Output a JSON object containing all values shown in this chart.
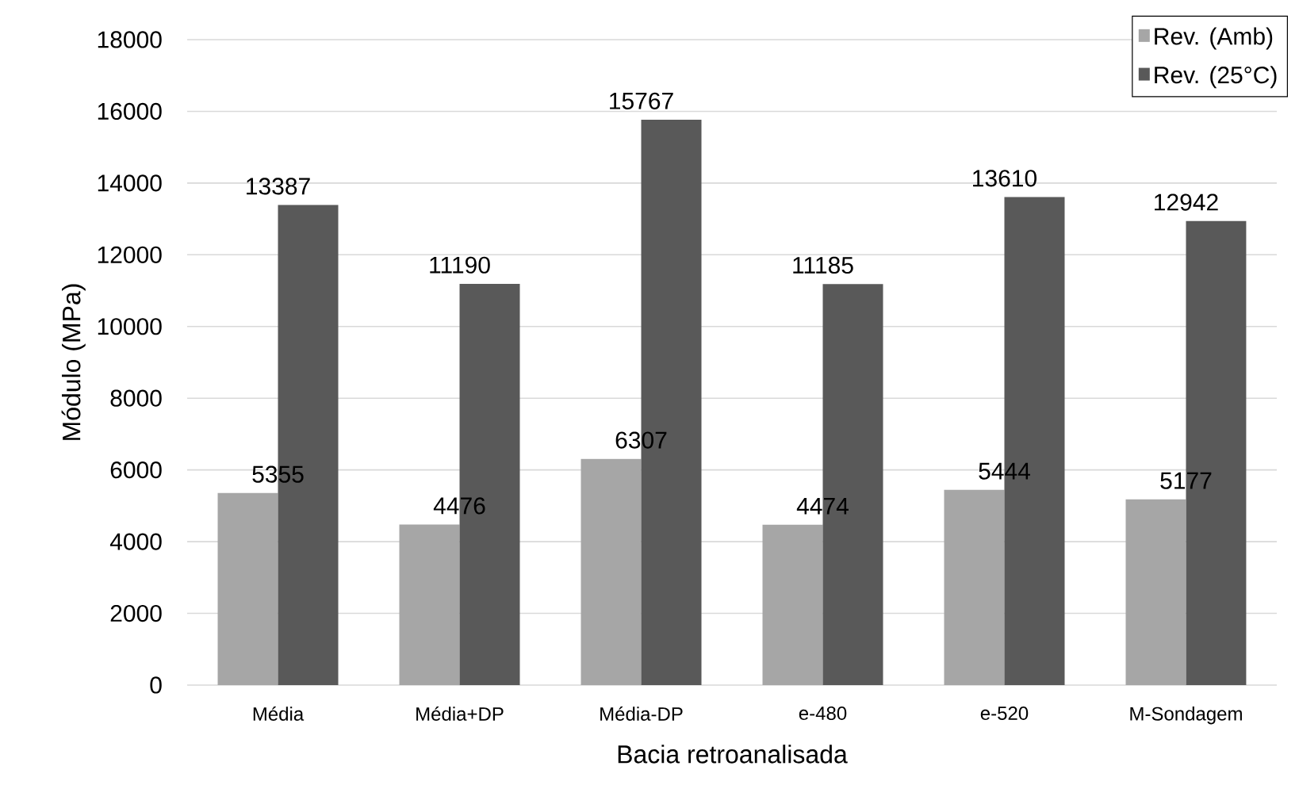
{
  "chart_data": {
    "type": "bar",
    "xlabel": "Bacia retroanalisada",
    "ylabel": "Módulo (MPa)",
    "categories": [
      "Média",
      "Média+DP",
      "Média-DP",
      "e-480",
      "e-520",
      "M-Sondagem"
    ],
    "series": [
      {
        "name": "Rev. (Amb)",
        "color": "#a6a6a6",
        "values": [
          5355,
          4476,
          6307,
          4474,
          5444,
          5177
        ]
      },
      {
        "name": "Rev. (25°C)",
        "color": "#595959",
        "values": [
          13387,
          11190,
          15767,
          11185,
          13610,
          12942
        ]
      }
    ],
    "ylim": [
      0,
      18000
    ],
    "yticks": [
      0,
      2000,
      4000,
      6000,
      8000,
      10000,
      12000,
      14000,
      16000,
      18000
    ],
    "grid": "y",
    "legend": "top right",
    "data_labels": true
  }
}
